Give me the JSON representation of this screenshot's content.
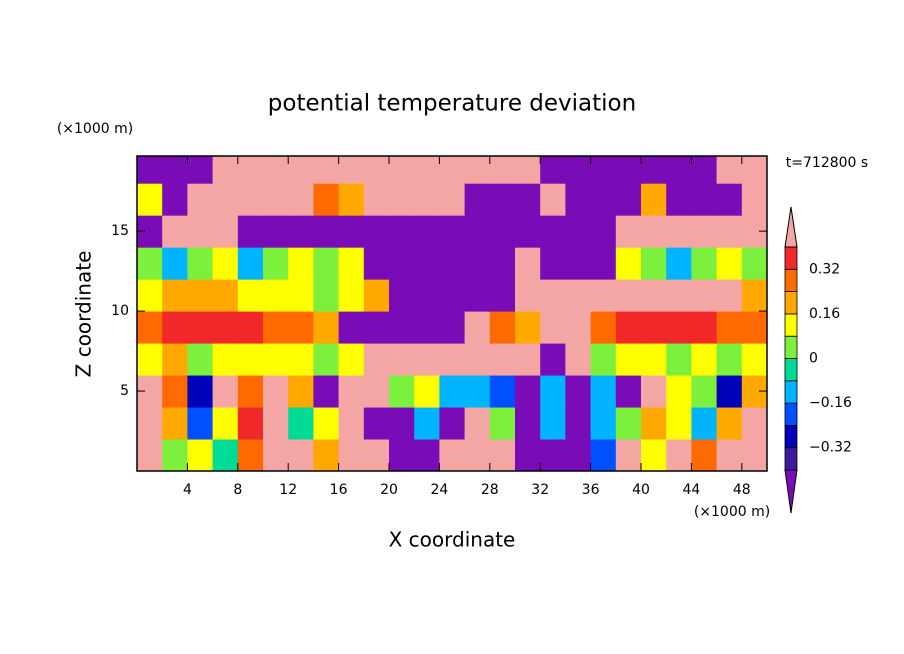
{
  "chart_data": {
    "type": "contour",
    "title": "potential temperature deviation",
    "x_label": "X coordinate",
    "y_label": "Z coordinate",
    "x_unit": "(×1000 m)",
    "y_unit": "(×1000 m)",
    "annotation": "t=712800 s",
    "xlim": [
      0,
      50
    ],
    "ylim": [
      0,
      19.7
    ],
    "xticks": [
      4,
      8,
      12,
      16,
      20,
      24,
      28,
      32,
      36,
      40,
      44,
      48
    ],
    "yticks": [
      5,
      10,
      15
    ],
    "levels": [
      -0.4,
      -0.32,
      -0.24,
      -0.16,
      -0.08,
      0,
      0.08,
      0.16,
      0.24,
      0.32,
      0.4
    ],
    "colors": [
      "#7a0cb8",
      "#3c1a9c",
      "#0000b8",
      "#0050ff",
      "#00b4ff",
      "#00dc96",
      "#7cf03c",
      "#ffff00",
      "#ffa800",
      "#ff6a00",
      "#f0282a",
      "#f4a6a4"
    ],
    "colorbar_ticks": [
      {
        "value": 0.32,
        "label": "0.32"
      },
      {
        "value": 0.16,
        "label": "0.16"
      },
      0,
      {
        "value": -0.16,
        "label": "−0.16"
      },
      {
        "value": -0.32,
        "label": "−0.32"
      }
    ],
    "field": {
      "xbins": [
        0,
        2,
        4,
        6,
        8,
        10,
        12,
        14,
        16,
        18,
        20,
        22,
        24,
        26,
        28,
        30,
        32,
        34,
        36,
        38,
        40,
        42,
        44,
        46,
        48,
        50
      ],
      "zbins": [
        0,
        2,
        4,
        6,
        8,
        10,
        12,
        14,
        16,
        18,
        19.7
      ],
      "values": [
        [
          0.45,
          0.05,
          0.1,
          -0.05,
          0.3,
          0.45,
          0.45,
          0.2,
          0.45,
          0.45,
          -0.45,
          -0.45,
          0.45,
          0.45,
          0.45,
          -0.45,
          -0.45,
          -0.45,
          -0.2,
          0.45,
          0.1,
          0.45,
          0.3,
          0.45,
          0.45
        ],
        [
          0.45,
          0.2,
          -0.2,
          0.1,
          0.35,
          0.45,
          -0.05,
          0.1,
          0.45,
          -0.45,
          -0.45,
          -0.1,
          -0.45,
          0.45,
          0.0,
          -0.45,
          -0.1,
          -0.45,
          -0.15,
          0.0,
          0.2,
          0.1,
          -0.1,
          0.2,
          0.45
        ],
        [
          0.45,
          0.3,
          -0.3,
          0.45,
          0.3,
          0.45,
          0.2,
          -0.45,
          0.45,
          0.45,
          0.0,
          0.1,
          -0.1,
          -0.15,
          -0.2,
          -0.45,
          -0.1,
          -0.45,
          -0.1,
          -0.45,
          0.45,
          0.1,
          0.0,
          -0.3,
          0.2
        ],
        [
          0.1,
          0.2,
          0.05,
          0.1,
          0.1,
          0.1,
          0.1,
          0.0,
          0.1,
          0.45,
          0.45,
          0.45,
          0.45,
          0.45,
          0.45,
          0.45,
          -0.45,
          0.45,
          0.0,
          0.1,
          0.1,
          0.05,
          0.1,
          0.0,
          0.1
        ],
        [
          0.3,
          0.35,
          0.35,
          0.35,
          0.35,
          0.3,
          0.3,
          0.2,
          -0.45,
          -0.45,
          -0.45,
          -0.45,
          -0.45,
          0.45,
          0.3,
          0.2,
          0.45,
          0.45,
          0.3,
          0.35,
          0.35,
          0.35,
          0.35,
          0.3,
          0.3
        ],
        [
          0.1,
          0.2,
          0.2,
          0.2,
          0.15,
          0.15,
          0.1,
          0.0,
          0.1,
          0.2,
          -0.45,
          -0.45,
          -0.45,
          -0.45,
          -0.45,
          0.45,
          0.45,
          0.45,
          0.45,
          0.45,
          0.45,
          0.45,
          0.45,
          0.45,
          0.2
        ],
        [
          0.0,
          -0.1,
          0.0,
          0.1,
          -0.1,
          0.0,
          0.1,
          0.0,
          0.1,
          -0.45,
          -0.45,
          -0.45,
          -0.45,
          -0.45,
          -0.45,
          0.45,
          -0.45,
          -0.45,
          -0.45,
          0.1,
          0.0,
          -0.1,
          0.0,
          0.1,
          0.0
        ],
        [
          -0.45,
          0.45,
          0.45,
          0.45,
          -0.45,
          -0.45,
          -0.45,
          -0.45,
          -0.45,
          -0.45,
          -0.45,
          -0.45,
          -0.45,
          -0.45,
          -0.45,
          -0.45,
          -0.45,
          -0.45,
          -0.45,
          0.45,
          0.45,
          0.45,
          0.45,
          0.45,
          0.45
        ],
        [
          0.1,
          -0.45,
          0.45,
          0.45,
          0.45,
          0.45,
          0.45,
          0.3,
          0.2,
          0.45,
          0.45,
          0.45,
          0.45,
          -0.45,
          -0.45,
          -0.45,
          0.45,
          -0.45,
          -0.45,
          -0.45,
          0.2,
          -0.45,
          -0.45,
          -0.45,
          0.45
        ],
        [
          -0.45,
          -0.45,
          -0.45,
          0.45,
          0.45,
          0.45,
          0.45,
          0.45,
          0.45,
          0.45,
          0.45,
          0.45,
          0.45,
          0.45,
          0.45,
          0.45,
          -0.45,
          -0.45,
          -0.45,
          -0.45,
          -0.45,
          -0.45,
          -0.45,
          0.45,
          0.45
        ]
      ]
    }
  }
}
